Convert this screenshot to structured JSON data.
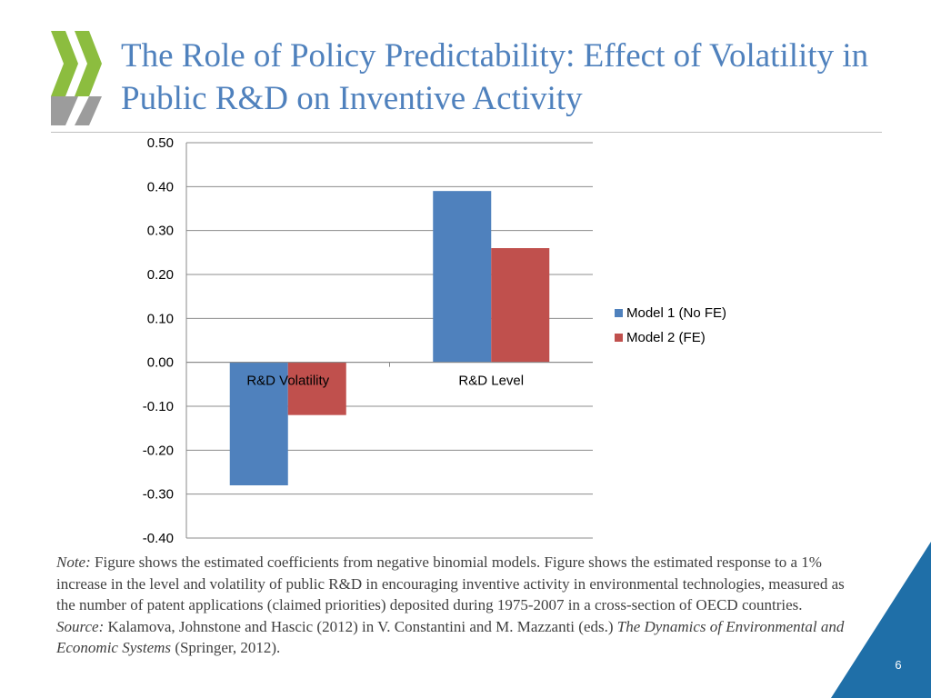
{
  "title": "The Role of Policy Predictability: Effect of Volatility in Public R&D on Inventive Activity",
  "colors": {
    "title": "#4f81bd",
    "series1": "#4f81bd",
    "series2": "#c0504d",
    "corner": "#1f6fa8",
    "logo_green": "#8cbd3f",
    "logo_grey": "#9c9c9c"
  },
  "logo": {
    "icon": "oecd-chevrons-icon"
  },
  "chart_data": {
    "type": "bar",
    "categories": [
      "R&D Volatility",
      "R&D Level"
    ],
    "series": [
      {
        "name": "Model 1 (No FE)",
        "values": [
          -0.28,
          0.39
        ]
      },
      {
        "name": "Model 2 (FE)",
        "values": [
          -0.12,
          0.26
        ]
      }
    ],
    "ylim": [
      -0.4,
      0.5
    ],
    "yticks": [
      "0.50",
      "0.40",
      "0.30",
      "0.20",
      "0.10",
      "0.00",
      "-0.10",
      "-0.20",
      "-0.30",
      "-0.40"
    ],
    "ytick_values": [
      0.5,
      0.4,
      0.3,
      0.2,
      0.1,
      0.0,
      -0.1,
      -0.2,
      -0.3,
      -0.4
    ],
    "legend_position": "right",
    "grid": true
  },
  "note": {
    "note_label": "Note:",
    "note_text": " Figure shows the estimated coefficients from negative binomial models. Figure shows the estimated response to a 1% increase in the level and volatility of public R&D in encouraging inventive activity in environmental technologies, measured as the number of patent applications (claimed priorities) deposited during 1975-2007 in a cross-section of OECD countries. ",
    "source_label": "Source:",
    "source_text": " Kalamova, Johnstone and Hascic (2012) in V. Constantini and M. Mazzanti (eds.) ",
    "book_title": "The Dynamics of Environmental and Economic Systems",
    "publisher": " (Springer, 2012)."
  },
  "page_number": "6"
}
